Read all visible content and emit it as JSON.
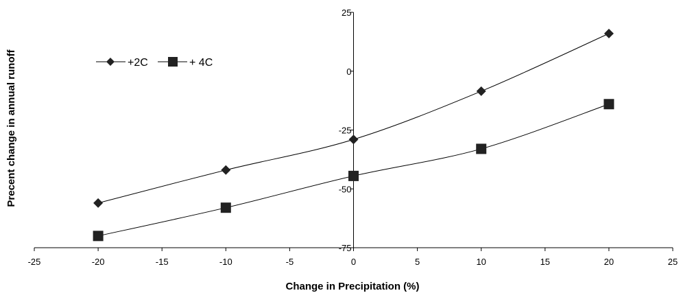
{
  "chart_data": {
    "type": "line",
    "xlabel": "Change in Precipitation (%)",
    "ylabel": "Precent change in annual runoff",
    "xlim": [
      -25,
      25
    ],
    "ylim": [
      -75,
      25
    ],
    "x_ticks": [
      -25,
      -20,
      -15,
      -10,
      -5,
      0,
      5,
      10,
      15,
      20,
      25
    ],
    "y_ticks": [
      25,
      0,
      -25,
      -50,
      -75
    ],
    "x_tick_labels": [
      "-25",
      "-20",
      "-15",
      "-10",
      "-5",
      "0",
      "5",
      "10",
      "15",
      "20",
      "25"
    ],
    "y_tick_labels": [
      "25",
      "0",
      "-25",
      "-50",
      "-75"
    ],
    "grid": false,
    "legend_position": "top-left",
    "series": [
      {
        "name": "+2C",
        "marker": "diamond",
        "x": [
          -20,
          -10,
          0,
          10,
          20
        ],
        "y": [
          -56,
          -42,
          -29,
          -8.5,
          16
        ]
      },
      {
        "name": "+ 4C",
        "marker": "square",
        "x": [
          -20,
          -10,
          0,
          10,
          20
        ],
        "y": [
          -70,
          -58,
          -44.5,
          -33,
          -14
        ]
      }
    ],
    "line_color": "#000000",
    "marker_color": "#222222"
  }
}
